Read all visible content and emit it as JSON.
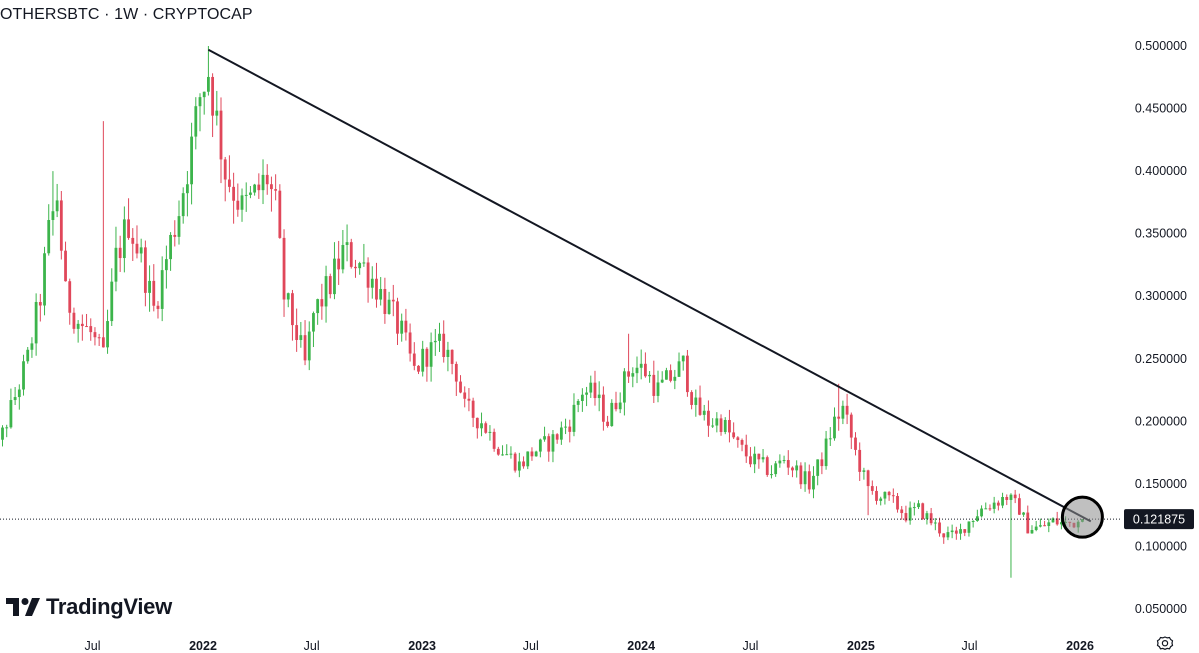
{
  "header": {
    "title": "OTHERSBTC · 1W · CRYPTOCAP"
  },
  "brand": {
    "name": "TradingView",
    "icon": "tradingview-logo-icon"
  },
  "colors": {
    "up": "#26a69a",
    "down": "#ef5350",
    "up_body": "#3cb44b",
    "down_body": "#e0475a",
    "trendline": "#131722",
    "price_tag": "#131722"
  },
  "chart_data": {
    "type": "candlestick",
    "symbol": "OTHERSBTC",
    "interval": "1W",
    "source": "CRYPTOCAP",
    "ylim": [
      0.05,
      0.5
    ],
    "y_scale": "linear",
    "y_ticks": [
      "0.500000",
      "0.450000",
      "0.400000",
      "0.350000",
      "0.300000",
      "0.250000",
      "0.200000",
      "0.150000",
      "0.100000",
      "0.050000"
    ],
    "x_ticks": [
      {
        "label": "Jul",
        "date": "2021-07-01",
        "major": false
      },
      {
        "label": "2022",
        "date": "2022-01-01",
        "major": true
      },
      {
        "label": "Jul",
        "date": "2022-07-01",
        "major": false
      },
      {
        "label": "2023",
        "date": "2023-01-01",
        "major": true
      },
      {
        "label": "Jul",
        "date": "2023-07-01",
        "major": false
      },
      {
        "label": "2024",
        "date": "2024-01-01",
        "major": true
      },
      {
        "label": "Jul",
        "date": "2024-07-01",
        "major": false
      },
      {
        "label": "2025",
        "date": "2025-01-01",
        "major": true
      },
      {
        "label": "Jul",
        "date": "2025-07-01",
        "major": false
      },
      {
        "label": "2026",
        "date": "2026-01-01",
        "major": true
      }
    ],
    "x_range": [
      "2021-01-04",
      "2026-03-01"
    ],
    "last_price": "0.121875",
    "last_price_value": 0.121875,
    "close_path": [
      [
        "2021-01-04",
        0.14
      ],
      [
        "2021-01-25",
        0.18
      ],
      [
        "2021-02-22",
        0.22
      ],
      [
        "2021-03-15",
        0.25
      ],
      [
        "2021-04-05",
        0.3
      ],
      [
        "2021-04-19",
        0.35
      ],
      [
        "2021-05-03",
        0.38
      ],
      [
        "2021-05-17",
        0.3
      ],
      [
        "2021-06-07",
        0.28
      ],
      [
        "2021-06-28",
        0.27
      ],
      [
        "2021-07-19",
        0.25
      ],
      [
        "2021-08-09",
        0.33
      ],
      [
        "2021-08-30",
        0.36
      ],
      [
        "2021-09-20",
        0.33
      ],
      [
        "2021-10-11",
        0.29
      ],
      [
        "2021-11-01",
        0.33
      ],
      [
        "2021-11-22",
        0.37
      ],
      [
        "2021-12-13",
        0.42
      ],
      [
        "2021-12-27",
        0.46
      ],
      [
        "2022-01-10",
        0.48
      ],
      [
        "2022-01-24",
        0.44
      ],
      [
        "2022-02-07",
        0.4
      ],
      [
        "2022-03-07",
        0.37
      ],
      [
        "2022-03-28",
        0.38
      ],
      [
        "2022-04-18",
        0.395
      ],
      [
        "2022-05-02",
        0.37
      ],
      [
        "2022-05-16",
        0.3
      ],
      [
        "2022-06-06",
        0.27
      ],
      [
        "2022-06-20",
        0.245
      ],
      [
        "2022-07-04",
        0.285
      ],
      [
        "2022-08-01",
        0.31
      ],
      [
        "2022-08-22",
        0.335
      ],
      [
        "2022-09-12",
        0.33
      ],
      [
        "2022-10-03",
        0.32
      ],
      [
        "2022-11-07",
        0.29
      ],
      [
        "2022-11-28",
        0.27
      ],
      [
        "2022-12-19",
        0.24
      ],
      [
        "2023-01-09",
        0.255
      ],
      [
        "2023-02-06",
        0.26
      ],
      [
        "2023-02-27",
        0.24
      ],
      [
        "2023-03-13",
        0.21
      ],
      [
        "2023-04-10",
        0.2
      ],
      [
        "2023-05-08",
        0.18
      ],
      [
        "2023-06-12",
        0.165
      ],
      [
        "2023-07-03",
        0.175
      ],
      [
        "2023-08-07",
        0.185
      ],
      [
        "2023-09-04",
        0.2
      ],
      [
        "2023-09-25",
        0.225
      ],
      [
        "2023-10-16",
        0.22
      ],
      [
        "2023-11-06",
        0.2
      ],
      [
        "2023-11-27",
        0.225
      ],
      [
        "2023-12-18",
        0.245
      ],
      [
        "2024-01-08",
        0.24
      ],
      [
        "2024-01-29",
        0.225
      ],
      [
        "2024-02-19",
        0.235
      ],
      [
        "2024-03-11",
        0.245
      ],
      [
        "2024-04-01",
        0.21
      ],
      [
        "2024-04-22",
        0.2
      ],
      [
        "2024-05-13",
        0.2
      ],
      [
        "2024-06-10",
        0.18
      ],
      [
        "2024-07-01",
        0.17
      ],
      [
        "2024-08-05",
        0.16
      ],
      [
        "2024-08-26",
        0.17
      ],
      [
        "2024-09-16",
        0.16
      ],
      [
        "2024-10-07",
        0.15
      ],
      [
        "2024-10-28",
        0.17
      ],
      [
        "2024-11-18",
        0.2
      ],
      [
        "2024-12-02",
        0.21
      ],
      [
        "2024-12-23",
        0.175
      ],
      [
        "2025-01-13",
        0.145
      ],
      [
        "2025-02-03",
        0.14
      ],
      [
        "2025-02-24",
        0.135
      ],
      [
        "2025-03-17",
        0.125
      ],
      [
        "2025-04-07",
        0.13
      ],
      [
        "2025-04-28",
        0.12
      ],
      [
        "2025-05-19",
        0.11
      ],
      [
        "2025-06-09",
        0.108
      ],
      [
        "2025-06-30",
        0.12
      ],
      [
        "2025-07-21",
        0.13
      ],
      [
        "2025-08-11",
        0.135
      ],
      [
        "2025-09-01",
        0.14
      ],
      [
        "2025-09-22",
        0.13
      ],
      [
        "2025-10-06",
        0.115
      ],
      [
        "2025-10-27",
        0.115
      ],
      [
        "2025-11-17",
        0.12
      ],
      [
        "2025-12-08",
        0.118
      ],
      [
        "2025-12-29",
        0.12
      ],
      [
        "2026-01-05",
        0.121875
      ]
    ],
    "wick_spikes": [
      {
        "date": "2021-07-19",
        "high": 0.44
      },
      {
        "date": "2021-04-26",
        "high": 0.4
      },
      {
        "date": "2022-01-10",
        "high": 0.5
      },
      {
        "date": "2022-08-29",
        "high": 0.35
      },
      {
        "date": "2023-12-11",
        "high": 0.27
      },
      {
        "date": "2024-03-04",
        "high": 0.255
      },
      {
        "date": "2024-11-25",
        "high": 0.23
      },
      {
        "date": "2025-09-08",
        "low": 0.075
      },
      {
        "date": "2025-01-13",
        "low": 0.125
      }
    ],
    "trendline": {
      "from": [
        "2022-01-10",
        0.497
      ],
      "to": [
        "2026-01-19",
        0.12
      ]
    },
    "highlight_circle": {
      "date": "2026-01-05",
      "value": 0.125
    },
    "grid": false,
    "legend": "none"
  }
}
